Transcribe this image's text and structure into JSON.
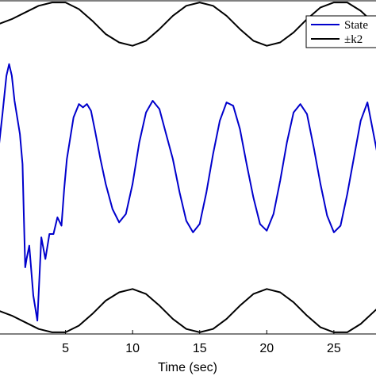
{
  "chart_data": {
    "type": "line",
    "title": "",
    "xlabel": "Time (sec)",
    "ylabel": "",
    "xlim": [
      0,
      28.2
    ],
    "ylim": [
      -1.0,
      1.0
    ],
    "xticks": [
      5,
      10,
      15,
      20,
      25
    ],
    "grid": false,
    "legend_position": "top-right",
    "legend": [
      "State",
      "±k2"
    ],
    "series": [
      {
        "name": "State",
        "color": "#0000cc",
        "x": [
          0.0,
          0.3,
          0.6,
          0.8,
          1.0,
          1.2,
          1.6,
          1.8,
          1.9,
          2.0,
          2.1,
          2.3,
          2.6,
          2.9,
          3.2,
          3.5,
          3.8,
          4.1,
          4.4,
          4.7,
          4.9,
          5.1,
          5.6,
          6.0,
          6.3,
          6.6,
          6.9,
          7.2,
          7.6,
          8.0,
          8.5,
          9.0,
          9.5,
          10.0,
          10.5,
          11.0,
          11.5,
          12.0,
          12.5,
          13.0,
          13.5,
          14.0,
          14.5,
          15.0,
          15.5,
          16.0,
          16.5,
          17.0,
          17.5,
          18.0,
          18.5,
          19.0,
          19.5,
          20.0,
          20.5,
          21.0,
          21.5,
          22.0,
          22.5,
          23.0,
          23.5,
          24.0,
          24.5,
          25.0,
          25.5,
          26.0,
          26.5,
          27.0,
          27.5,
          28.2
        ],
        "y": [
          0.1,
          0.32,
          0.55,
          0.62,
          0.55,
          0.4,
          0.2,
          0.02,
          -0.3,
          -0.6,
          -0.55,
          -0.47,
          -0.77,
          -0.92,
          -0.42,
          -0.55,
          -0.4,
          -0.4,
          -0.3,
          -0.35,
          -0.13,
          0.05,
          0.3,
          0.38,
          0.36,
          0.38,
          0.34,
          0.22,
          0.05,
          -0.1,
          -0.25,
          -0.33,
          -0.28,
          -0.1,
          0.15,
          0.33,
          0.4,
          0.35,
          0.2,
          0.05,
          -0.15,
          -0.32,
          -0.39,
          -0.34,
          -0.15,
          0.08,
          0.28,
          0.39,
          0.37,
          0.23,
          0.02,
          -0.18,
          -0.34,
          -0.38,
          -0.28,
          -0.08,
          0.15,
          0.33,
          0.38,
          0.32,
          0.12,
          -0.1,
          -0.29,
          -0.39,
          -0.35,
          -0.16,
          0.06,
          0.28,
          0.39,
          0.1
        ]
      },
      {
        "name": "±k2",
        "color": "#000000",
        "x": [
          0.0,
          1.0,
          2.0,
          3.0,
          4.0,
          5.0,
          6.0,
          7.0,
          8.0,
          9.0,
          10.0,
          11.0,
          12.0,
          13.0,
          14.0,
          15.0,
          16.0,
          17.0,
          18.0,
          19.0,
          20.0,
          21.0,
          22.0,
          23.0,
          24.0,
          25.0,
          26.0,
          27.0,
          28.2
        ],
        "y": [
          0.86,
          0.89,
          0.93,
          0.97,
          0.99,
          0.99,
          0.95,
          0.88,
          0.8,
          0.75,
          0.73,
          0.76,
          0.83,
          0.91,
          0.97,
          0.99,
          0.97,
          0.91,
          0.83,
          0.76,
          0.73,
          0.75,
          0.81,
          0.89,
          0.96,
          0.99,
          0.99,
          0.94,
          0.85
        ]
      },
      {
        "name": "",
        "color": "#000000",
        "x": [
          0.0,
          1.0,
          2.0,
          3.0,
          4.0,
          5.0,
          6.0,
          7.0,
          8.0,
          9.0,
          10.0,
          11.0,
          12.0,
          13.0,
          14.0,
          15.0,
          16.0,
          17.0,
          18.0,
          19.0,
          20.0,
          21.0,
          22.0,
          23.0,
          24.0,
          25.0,
          26.0,
          27.0,
          28.2
        ],
        "y": [
          -0.86,
          -0.89,
          -0.93,
          -0.97,
          -0.99,
          -0.99,
          -0.95,
          -0.88,
          -0.8,
          -0.75,
          -0.73,
          -0.76,
          -0.83,
          -0.91,
          -0.97,
          -0.99,
          -0.97,
          -0.91,
          -0.83,
          -0.76,
          -0.73,
          -0.75,
          -0.81,
          -0.89,
          -0.96,
          -0.99,
          -0.99,
          -0.94,
          -0.85
        ]
      }
    ]
  }
}
